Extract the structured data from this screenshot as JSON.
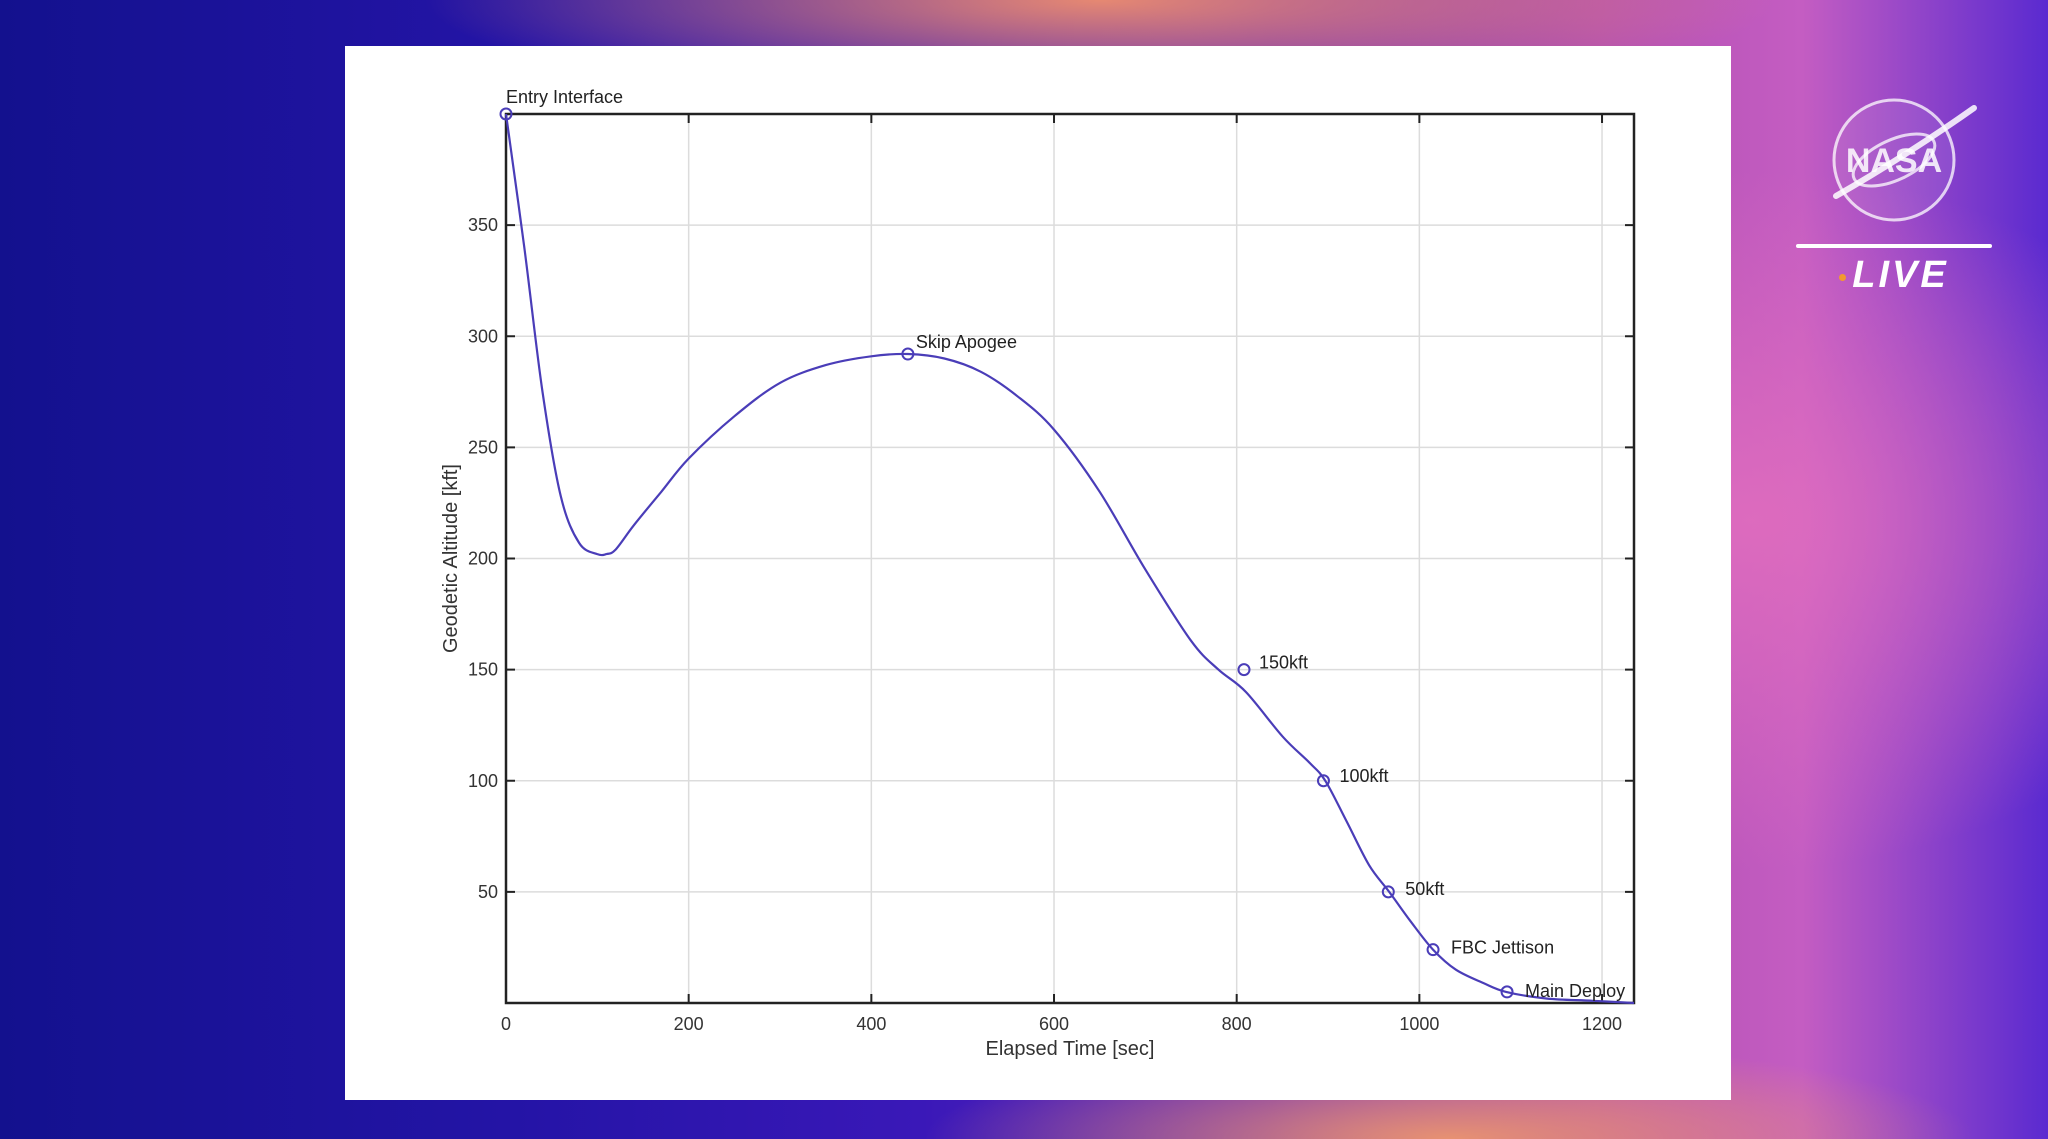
{
  "broadcast": {
    "logo": "nasa-logo",
    "live_label": "LIVE",
    "live_dot_color": "#f29a2e"
  },
  "chart_data": {
    "type": "line",
    "title": "",
    "xlabel": "Elapsed Time [sec]",
    "ylabel": "Geodetic Altitude [kft]",
    "xlim": [
      0,
      1235
    ],
    "ylim": [
      0,
      400
    ],
    "xticks": [
      0,
      200,
      400,
      600,
      800,
      1000,
      1200
    ],
    "yticks": [
      50,
      100,
      150,
      200,
      250,
      300,
      350
    ],
    "grid": true,
    "line_color": "#4a3db8",
    "series": [
      {
        "x": [
          0,
          20,
          40,
          60,
          80,
          100,
          110,
          120,
          140,
          170,
          200,
          250,
          300,
          350,
          400,
          440,
          480,
          520,
          560,
          600,
          650,
          700,
          750,
          780,
          810,
          850,
          880,
          897,
          920,
          945,
          967,
          990,
          1015,
          1040,
          1070,
          1095,
          1140,
          1190,
          1235
        ],
        "y": [
          400,
          340,
          275,
          228,
          207,
          202,
          202,
          204,
          215,
          230,
          245,
          264,
          279,
          287,
          291,
          292,
          290,
          284,
          273,
          258,
          230,
          195,
          163,
          150,
          140,
          120,
          108,
          100,
          82,
          62,
          50,
          37,
          24,
          15,
          9,
          5,
          2,
          1,
          0
        ]
      }
    ],
    "annotations": [
      {
        "label": "Entry Interface",
        "x": 0,
        "y": 400
      },
      {
        "label": "Skip Apogee",
        "x": 440,
        "y": 292
      },
      {
        "label": "150kft",
        "x": 808,
        "y": 150
      },
      {
        "label": "100kft",
        "x": 895,
        "y": 100
      },
      {
        "label": "50kft",
        "x": 966,
        "y": 50
      },
      {
        "label": "FBC Jettison",
        "x": 1015,
        "y": 24
      },
      {
        "label": "Main Deploy",
        "x": 1096,
        "y": 5
      }
    ]
  }
}
